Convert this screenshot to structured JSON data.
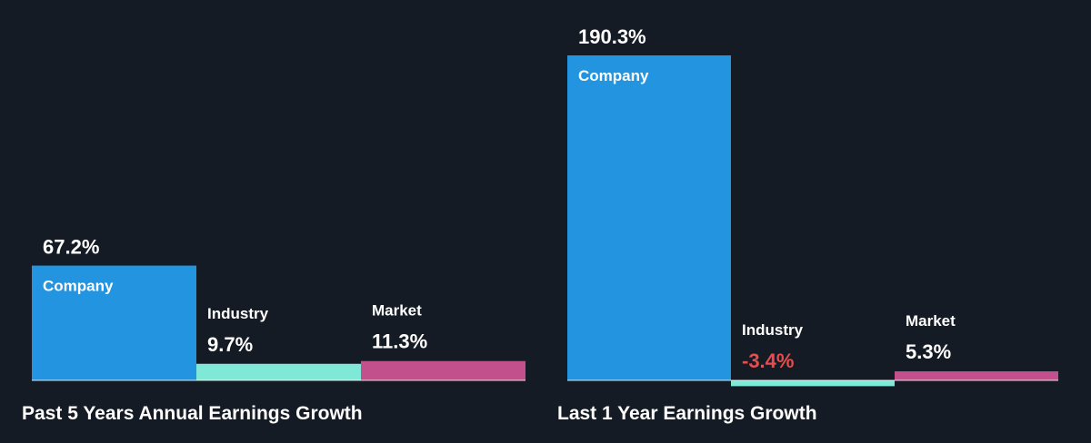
{
  "colors": {
    "background": "#151b24",
    "company": "#2394df",
    "industry": "#7fe8d6",
    "market": "#c2508c",
    "negative_text": "#e84c4c",
    "text": "#ffffff",
    "baseline": "#ffffff"
  },
  "chart_data": [
    {
      "type": "bar",
      "title": "Past 5 Years Annual Earnings Growth",
      "categories": [
        "Company",
        "Industry",
        "Market"
      ],
      "values": [
        67.2,
        9.7,
        11.3
      ],
      "value_labels": [
        "67.2%",
        "9.7%",
        "11.3%"
      ],
      "unit": "%",
      "xlabel": "",
      "ylabel": "",
      "grid": false,
      "legend": "none"
    },
    {
      "type": "bar",
      "title": "Last 1 Year Earnings Growth",
      "categories": [
        "Company",
        "Industry",
        "Market"
      ],
      "values": [
        190.3,
        -3.4,
        5.3
      ],
      "value_labels": [
        "190.3%",
        "-3.4%",
        "5.3%"
      ],
      "unit": "%",
      "xlabel": "",
      "ylabel": "",
      "grid": false,
      "legend": "none"
    }
  ]
}
